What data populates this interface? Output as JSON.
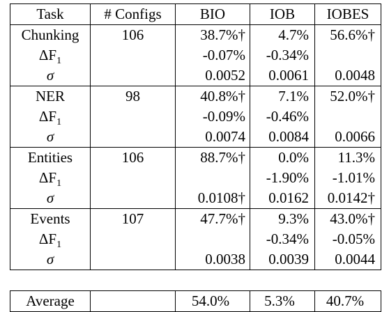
{
  "headers": {
    "task": "Task",
    "configs": "# Configs",
    "bio": "BIO",
    "iob": "IOB",
    "iobes": "IOBES"
  },
  "row_labels": {
    "delta_f1": "ΔF",
    "delta_f1_sub": "1",
    "sigma": "σ"
  },
  "tasks": [
    {
      "name": "Chunking",
      "configs": "106",
      "main": {
        "bio": "38.7%†",
        "iob": "4.7%",
        "iobes": "56.6%†"
      },
      "delta": {
        "bio": "-0.07%",
        "iob": "-0.34%",
        "iobes": ""
      },
      "sigma": {
        "bio": "0.0052",
        "iob": "0.0061",
        "iobes": "0.0048"
      }
    },
    {
      "name": "NER",
      "configs": "98",
      "main": {
        "bio": "40.8%†",
        "iob": "7.1%",
        "iobes": "52.0%†"
      },
      "delta": {
        "bio": "-0.09%",
        "iob": "-0.46%",
        "iobes": ""
      },
      "sigma": {
        "bio": "0.0074",
        "iob": "0.0084",
        "iobes": "0.0066"
      }
    },
    {
      "name": "Entities",
      "configs": "106",
      "main": {
        "bio": "88.7%†",
        "iob": "0.0%",
        "iobes": "11.3%"
      },
      "delta": {
        "bio": "",
        "iob": "-1.90%",
        "iobes": "-1.01%"
      },
      "sigma": {
        "bio": "0.0108†",
        "iob": "0.0162",
        "iobes": "0.0142†"
      }
    },
    {
      "name": "Events",
      "configs": "107",
      "main": {
        "bio": "47.7%†",
        "iob": "9.3%",
        "iobes": "43.0%†"
      },
      "delta": {
        "bio": "",
        "iob": "-0.34%",
        "iobes": "-0.05%"
      },
      "sigma": {
        "bio": "0.0038",
        "iob": "0.0039",
        "iobes": "0.0044"
      }
    }
  ],
  "average": {
    "label": "Average",
    "configs": "",
    "bio": "54.0%",
    "iob": "5.3%",
    "iobes": "40.7%"
  },
  "bold_cells": [
    "Chunking.iobes",
    "NER.iobes",
    "Entities.bio",
    "Events.bio",
    "average.bio"
  ]
}
